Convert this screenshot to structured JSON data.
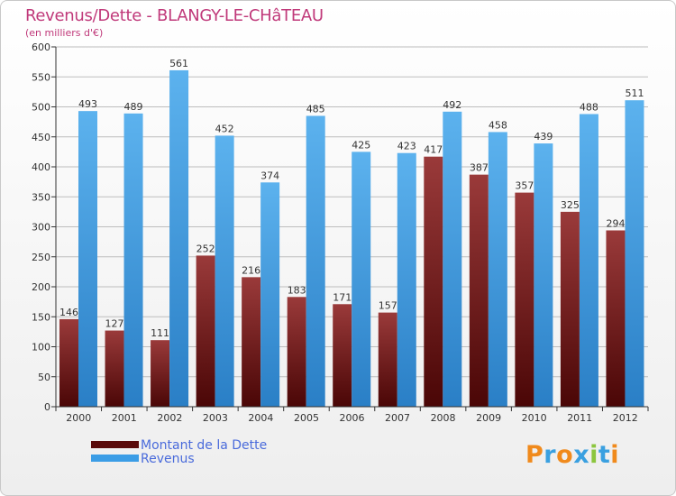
{
  "title": "Revenus/Dette - BLANGY-LE-CHâTEAU",
  "subtitle": "(en milliers d'€)",
  "legend": {
    "dette_label": "Montant de la Dette",
    "revenus_label": "Revenus"
  },
  "logo": {
    "text": "Proxiti"
  },
  "colors": {
    "dette": "#7a1a1a",
    "revenus": "#3b9de6",
    "title": "#c0397a",
    "legend_text": "#4a6bdb"
  },
  "chart_data": {
    "type": "bar",
    "title": "Revenus/Dette - BLANGY-LE-CHâTEAU",
    "ylabel": "(en milliers d'€)",
    "xlabel": "",
    "categories": [
      "2000",
      "2001",
      "2002",
      "2003",
      "2004",
      "2005",
      "2006",
      "2007",
      "2008",
      "2009",
      "2010",
      "2011",
      "2012"
    ],
    "series": [
      {
        "name": "Montant de la Dette",
        "values": [
          146,
          127,
          111,
          252,
          216,
          183,
          171,
          157,
          417,
          387,
          357,
          325,
          294
        ]
      },
      {
        "name": "Revenus",
        "values": [
          493,
          489,
          561,
          452,
          374,
          485,
          425,
          423,
          492,
          458,
          439,
          488,
          511
        ]
      }
    ],
    "ylim": [
      0,
      600
    ],
    "yticks": [
      0,
      50,
      100,
      150,
      200,
      250,
      300,
      350,
      400,
      450,
      500,
      550,
      600
    ],
    "grid": true,
    "legend_position": "bottom-left"
  }
}
